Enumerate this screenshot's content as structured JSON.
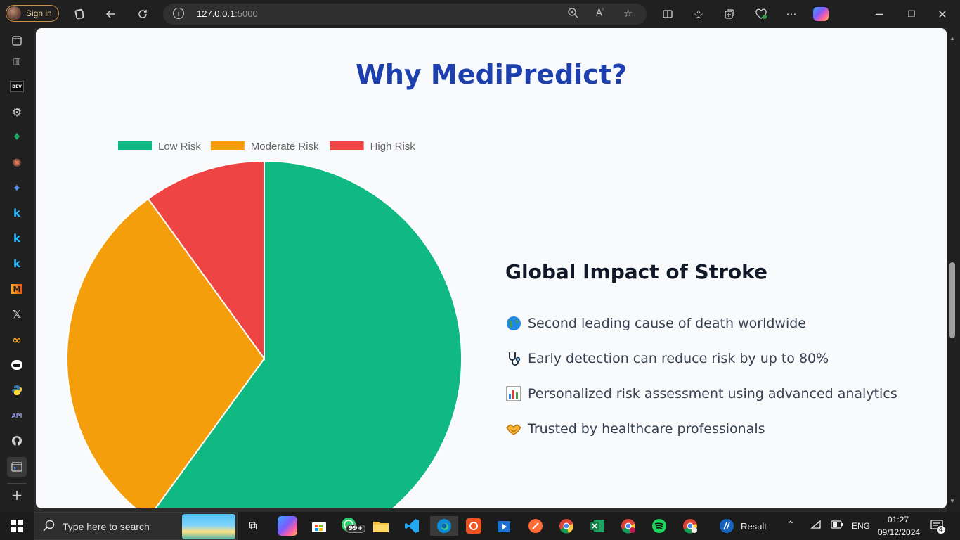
{
  "browser": {
    "signin_label": "Sign in",
    "url_host": "127.0.0.1",
    "url_port": ":5000",
    "toolbar_icons": [
      "workspaces-icon",
      "back-icon",
      "refresh-icon",
      "zoom-icon",
      "read-aloud-icon",
      "favorite-icon",
      "split-screen-icon",
      "favorites-icon",
      "collections-icon",
      "health-icon",
      "more-icon",
      "copilot-icon"
    ],
    "window_controls": [
      "minimize-icon",
      "restore-icon",
      "close-icon"
    ]
  },
  "sidebar": {
    "items": [
      "tab-actions-icon",
      "vertical-tabs-icon",
      "dev-icon",
      "chatgpt-icon",
      "mongodb-icon",
      "claude-icon",
      "gemini-icon",
      "kaggle-icon",
      "kaggle-icon",
      "kaggle-icon",
      "medium-icon",
      "x-icon",
      "meta-icon",
      "discord-icon",
      "python-icon",
      "api-icon",
      "github-icon",
      "terminal-icon",
      "add-icon"
    ]
  },
  "page": {
    "title": "Why MediPredict?",
    "impact": {
      "title": "Global Impact of Stroke",
      "items": [
        {
          "icon": "globe-icon",
          "text": "Second leading cause of death worldwide"
        },
        {
          "icon": "stethoscope-icon",
          "text": "Early detection can reduce risk by up to 80%"
        },
        {
          "icon": "bar-chart-icon",
          "text": "Personalized risk assessment using advanced analytics"
        },
        {
          "icon": "handshake-icon",
          "text": "Trusted by healthcare professionals"
        }
      ]
    }
  },
  "chart_data": {
    "type": "pie",
    "title": "",
    "categories": [
      "Low Risk",
      "Moderate Risk",
      "High Risk"
    ],
    "values": [
      60,
      30,
      10
    ],
    "colors": [
      "#10b981",
      "#f59e0b",
      "#ef4444"
    ],
    "legend": "top"
  },
  "taskbar": {
    "search_placeholder": "Type here to search",
    "whatsapp_badge": "99+",
    "result_label": "Result",
    "language": "ENG",
    "time": "01:27",
    "date": "09/12/2024",
    "notification_count": "4"
  }
}
